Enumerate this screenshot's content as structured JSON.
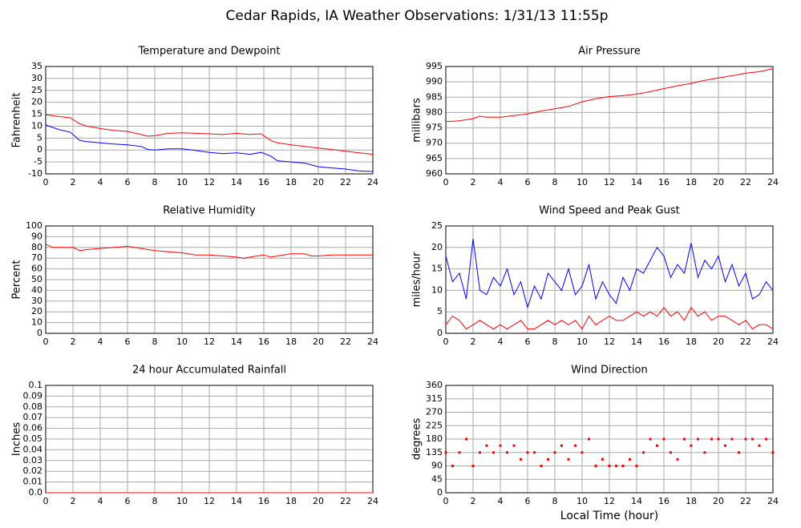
{
  "title": "Cedar Rapids, IA Weather Observations: 1/31/13 11:55p",
  "chart_data": [
    {
      "type": "line",
      "title": "Temperature and Dewpoint",
      "y_label": "Fahrenheit",
      "x": [
        0,
        1,
        1.8,
        2.5,
        3,
        4,
        5,
        6,
        7,
        7.5,
        8,
        9,
        10,
        11,
        12,
        13,
        14,
        15,
        15.8,
        16.5,
        17,
        18,
        19,
        20,
        21,
        22,
        23,
        24
      ],
      "series": [
        {
          "color": "#ff0000",
          "values": [
            14.8,
            14,
            13.5,
            11,
            10,
            9,
            8.2,
            7.8,
            6.5,
            5.8,
            6,
            7,
            7.2,
            7,
            6.8,
            6.5,
            7,
            6.5,
            6.8,
            4,
            3,
            2.2,
            1.5,
            0.8,
            0.2,
            -0.5,
            -1.2,
            -1.8
          ]
        },
        {
          "color": "#0000ff",
          "values": [
            10.5,
            8.5,
            7.5,
            4,
            3.5,
            3,
            2.5,
            2.2,
            1.5,
            0.2,
            0,
            0.5,
            0.5,
            -0.2,
            -1,
            -1.5,
            -1.2,
            -1.8,
            -1,
            -2.5,
            -4.5,
            -5,
            -5.5,
            -7,
            -7.5,
            -8,
            -8.8,
            -9
          ]
        }
      ],
      "xlim": [
        0,
        24
      ],
      "xticks": [
        0,
        2,
        4,
        6,
        8,
        10,
        12,
        14,
        16,
        18,
        20,
        22,
        24
      ],
      "ylim": [
        -10,
        35
      ],
      "yticks": [
        -10,
        -5,
        0,
        5,
        10,
        15,
        20,
        25,
        30,
        35
      ],
      "grid": true
    },
    {
      "type": "line",
      "title": "Air Pressure",
      "y_label": "millibars",
      "x": [
        0,
        1,
        2,
        2.5,
        3,
        4,
        5,
        6,
        7,
        8,
        9,
        10,
        11,
        12,
        13,
        14,
        15,
        16,
        17,
        18,
        19,
        20,
        21,
        22,
        23,
        24
      ],
      "series": [
        {
          "color": "#ff0000",
          "values": [
            977,
            977.3,
            978,
            978.8,
            978.5,
            978.5,
            979,
            979.5,
            980.5,
            981.2,
            982,
            983.5,
            984.5,
            985.2,
            985.5,
            986,
            986.8,
            987.8,
            988.7,
            989.5,
            990.5,
            991.3,
            992,
            992.8,
            993.3,
            994.3
          ]
        }
      ],
      "xlim": [
        0,
        24
      ],
      "xticks": [
        0,
        2,
        4,
        6,
        8,
        10,
        12,
        14,
        16,
        18,
        20,
        22,
        24
      ],
      "ylim": [
        960,
        995
      ],
      "yticks": [
        960,
        965,
        970,
        975,
        980,
        985,
        990,
        995
      ],
      "grid": true
    },
    {
      "type": "line",
      "title": "Relative Humidity",
      "y_label": "Percent",
      "x": [
        0,
        0.5,
        1,
        2,
        2.5,
        3,
        4,
        5,
        6,
        6.5,
        7,
        8,
        9,
        10,
        11,
        12,
        13,
        14,
        14.5,
        15,
        15.5,
        16,
        16.5,
        17,
        18,
        19,
        19.5,
        20,
        21,
        22,
        23,
        24
      ],
      "series": [
        {
          "color": "#ff0000",
          "values": [
            83,
            80,
            80,
            80,
            77,
            78,
            79,
            80,
            81,
            80,
            79,
            77,
            76,
            75,
            73,
            73,
            72,
            71,
            70,
            71,
            72,
            73,
            71,
            72,
            74,
            74,
            72,
            72,
            73,
            73,
            73,
            73
          ]
        }
      ],
      "xlim": [
        0,
        24
      ],
      "xticks": [
        0,
        2,
        4,
        6,
        8,
        10,
        12,
        14,
        16,
        18,
        20,
        22,
        24
      ],
      "ylim": [
        0,
        100
      ],
      "yticks": [
        0,
        10,
        20,
        30,
        40,
        50,
        60,
        70,
        80,
        90,
        100
      ],
      "grid": true
    },
    {
      "type": "line",
      "title": "Wind Speed and Peak Gust",
      "y_label": "miles/hour",
      "x": [
        0,
        0.5,
        1,
        1.5,
        2,
        2.5,
        3,
        3.5,
        4,
        4.5,
        5,
        5.5,
        6,
        6.5,
        7,
        7.5,
        8,
        8.5,
        9,
        9.5,
        10,
        10.5,
        11,
        11.5,
        12,
        12.5,
        13,
        13.5,
        14,
        14.5,
        15,
        15.5,
        16,
        16.5,
        17,
        17.5,
        18,
        18.5,
        19,
        19.5,
        20,
        20.5,
        21,
        21.5,
        22,
        22.5,
        23,
        23.5,
        24
      ],
      "series": [
        {
          "color": "#0000ff",
          "values": [
            18,
            12,
            14,
            8,
            22,
            10,
            9,
            13,
            11,
            15,
            9,
            12,
            6,
            11,
            8,
            14,
            12,
            10,
            15,
            9,
            11,
            16,
            8,
            12,
            9,
            7,
            13,
            10,
            15,
            14,
            17,
            20,
            18,
            13,
            16,
            14,
            21,
            13,
            17,
            15,
            18,
            12,
            16,
            11,
            14,
            8,
            9,
            12,
            10
          ]
        },
        {
          "color": "#ff0000",
          "values": [
            2,
            4,
            3,
            1,
            2,
            3,
            2,
            1,
            2,
            1,
            2,
            3,
            1,
            1,
            2,
            3,
            2,
            3,
            2,
            3,
            1,
            4,
            2,
            3,
            4,
            3,
            3,
            4,
            5,
            4,
            5,
            4,
            6,
            4,
            5,
            3,
            6,
            4,
            5,
            3,
            4,
            4,
            3,
            2,
            3,
            1,
            2,
            2,
            1
          ]
        }
      ],
      "xlim": [
        0,
        24
      ],
      "xticks": [
        0,
        2,
        4,
        6,
        8,
        10,
        12,
        14,
        16,
        18,
        20,
        22,
        24
      ],
      "ylim": [
        0,
        25
      ],
      "yticks": [
        0,
        5,
        10,
        15,
        20,
        25
      ],
      "grid": true
    },
    {
      "type": "line",
      "title": "24 hour Accumulated Rainfall",
      "y_label": "Inches",
      "x": [
        0,
        24
      ],
      "series": [
        {
          "color": "#ff0000",
          "values": [
            0,
            0
          ]
        }
      ],
      "xlim": [
        0,
        24
      ],
      "xticks": [
        0,
        2,
        4,
        6,
        8,
        10,
        12,
        14,
        16,
        18,
        20,
        22,
        24
      ],
      "ylim": [
        0,
        0.1
      ],
      "yticks": [
        {
          "value": 0,
          "label": "0.0"
        },
        0.01,
        0.02,
        0.03,
        0.04,
        0.05,
        0.06,
        0.07,
        0.08,
        0.09,
        0.1
      ],
      "grid": true
    },
    {
      "type": "scatter",
      "title": "Wind Direction",
      "y_label": "degrees",
      "x_label": "Local Time (hour)",
      "x": [
        0,
        0.5,
        1,
        1.5,
        2,
        2.5,
        3,
        3.5,
        4,
        4.5,
        5,
        5.5,
        6,
        6.5,
        7,
        7.5,
        8,
        8.5,
        9,
        9.5,
        10,
        10.5,
        11,
        11.5,
        12,
        12.5,
        13,
        13.5,
        14,
        14.5,
        15,
        15.5,
        16,
        16.5,
        17,
        17.5,
        18,
        18.5,
        19,
        19.5,
        20,
        20.5,
        21,
        21.5,
        22,
        22.5,
        23,
        23.5,
        24
      ],
      "series": [
        {
          "color": "#ff0000",
          "values": [
            135,
            90,
            135,
            180,
            90,
            135,
            158,
            135,
            158,
            135,
            158,
            112,
            135,
            135,
            90,
            112,
            135,
            158,
            112,
            158,
            135,
            180,
            90,
            112,
            90,
            90,
            90,
            112,
            90,
            135,
            180,
            158,
            180,
            135,
            112,
            180,
            158,
            180,
            135,
            180,
            180,
            158,
            180,
            135,
            180,
            180,
            158,
            180,
            135
          ]
        }
      ],
      "xlim": [
        0,
        24
      ],
      "xticks": [
        0,
        2,
        4,
        6,
        8,
        10,
        12,
        14,
        16,
        18,
        20,
        22,
        24
      ],
      "ylim": [
        0,
        360
      ],
      "yticks": [
        0,
        45,
        90,
        135,
        180,
        225,
        270,
        315,
        360
      ],
      "grid": true
    }
  ]
}
